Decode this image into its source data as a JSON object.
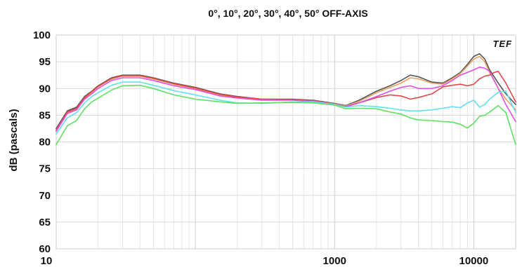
{
  "chart_data": {
    "type": "line",
    "title": "0°, 10°, 20°, 30°, 40°, 50° OFF-AXIS",
    "xlabel": "",
    "ylabel": "dB (pascals)",
    "xscale": "log",
    "xlim": [
      10,
      20000
    ],
    "ylim": [
      60,
      100
    ],
    "x_ticks": [
      10,
      1000,
      10000
    ],
    "x_tick_labels": [
      "10",
      "1000",
      "10000"
    ],
    "y_ticks": [
      100,
      95,
      90,
      85,
      80,
      75,
      70,
      65,
      60
    ],
    "y_tick_labels": [
      "100",
      "95",
      "90",
      "85",
      "80",
      "75",
      "70",
      "65",
      "60"
    ],
    "grid": true,
    "logo": "TEF",
    "series": [
      {
        "color": "#555555",
        "points": [
          [
            10,
            82.5
          ],
          [
            12,
            85.8
          ],
          [
            14,
            86.5
          ],
          [
            16,
            88.5
          ],
          [
            18,
            89.5
          ],
          [
            20,
            90.5
          ],
          [
            25,
            92.0
          ],
          [
            30,
            92.5
          ],
          [
            40,
            92.5
          ],
          [
            50,
            92.0
          ],
          [
            70,
            91.0
          ],
          [
            100,
            90.2
          ],
          [
            150,
            89.0
          ],
          [
            200,
            88.5
          ],
          [
            300,
            88.0
          ],
          [
            500,
            88.0
          ],
          [
            700,
            87.8
          ],
          [
            1000,
            87.2
          ],
          [
            1200,
            86.8
          ],
          [
            1500,
            87.8
          ],
          [
            2000,
            89.5
          ],
          [
            2500,
            90.5
          ],
          [
            3000,
            91.5
          ],
          [
            3500,
            92.5
          ],
          [
            4000,
            92.2
          ],
          [
            5000,
            91.2
          ],
          [
            6000,
            91.0
          ],
          [
            7000,
            92.0
          ],
          [
            8000,
            93.0
          ],
          [
            9000,
            94.5
          ],
          [
            10000,
            96.0
          ],
          [
            11000,
            96.5
          ],
          [
            12000,
            95.5
          ],
          [
            13000,
            93.5
          ],
          [
            15000,
            91.0
          ],
          [
            17000,
            89.0
          ],
          [
            20000,
            87.0
          ]
        ]
      },
      {
        "color": "#e8a060",
        "points": [
          [
            10,
            82.0
          ],
          [
            12,
            85.5
          ],
          [
            14,
            86.2
          ],
          [
            16,
            88.2
          ],
          [
            18,
            89.3
          ],
          [
            20,
            90.3
          ],
          [
            25,
            91.8
          ],
          [
            30,
            92.3
          ],
          [
            40,
            92.3
          ],
          [
            50,
            91.8
          ],
          [
            70,
            90.8
          ],
          [
            100,
            90.0
          ],
          [
            150,
            88.8
          ],
          [
            200,
            88.3
          ],
          [
            300,
            87.9
          ],
          [
            500,
            87.9
          ],
          [
            700,
            87.7
          ],
          [
            1000,
            87.1
          ],
          [
            1200,
            86.7
          ],
          [
            1500,
            87.6
          ],
          [
            2000,
            89.2
          ],
          [
            2500,
            90.2
          ],
          [
            3000,
            91.0
          ],
          [
            3500,
            92.0
          ],
          [
            4000,
            91.8
          ],
          [
            5000,
            91.0
          ],
          [
            6000,
            90.8
          ],
          [
            7000,
            91.8
          ],
          [
            8000,
            92.8
          ],
          [
            9000,
            94.2
          ],
          [
            10000,
            95.5
          ],
          [
            11000,
            96.0
          ],
          [
            12000,
            95.0
          ],
          [
            13000,
            93.0
          ],
          [
            15000,
            90.0
          ],
          [
            17000,
            88.0
          ],
          [
            20000,
            86.0
          ]
        ]
      },
      {
        "color": "#e04848",
        "points": [
          [
            10,
            82.2
          ],
          [
            12,
            85.6
          ],
          [
            14,
            86.3
          ],
          [
            16,
            88.3
          ],
          [
            18,
            89.4
          ],
          [
            20,
            90.4
          ],
          [
            25,
            91.9
          ],
          [
            30,
            92.4
          ],
          [
            40,
            92.4
          ],
          [
            50,
            91.9
          ],
          [
            70,
            90.9
          ],
          [
            100,
            90.1
          ],
          [
            150,
            88.9
          ],
          [
            200,
            88.4
          ],
          [
            300,
            88.0
          ],
          [
            500,
            87.9
          ],
          [
            700,
            87.7
          ],
          [
            1000,
            87.0
          ],
          [
            1200,
            86.6
          ],
          [
            1500,
            87.3
          ],
          [
            2000,
            88.3
          ],
          [
            2500,
            88.8
          ],
          [
            3000,
            88.6
          ],
          [
            3500,
            88.0
          ],
          [
            4000,
            88.3
          ],
          [
            5000,
            89.0
          ],
          [
            6000,
            90.3
          ],
          [
            7000,
            90.6
          ],
          [
            8000,
            90.8
          ],
          [
            9000,
            90.5
          ],
          [
            10000,
            90.8
          ],
          [
            11000,
            91.8
          ],
          [
            12000,
            92.3
          ],
          [
            13000,
            92.5
          ],
          [
            14000,
            93.0
          ],
          [
            15000,
            93.2
          ],
          [
            17000,
            91.0
          ],
          [
            20000,
            87.5
          ]
        ]
      },
      {
        "color": "#e050e0",
        "points": [
          [
            10,
            82.0
          ],
          [
            12,
            85.3
          ],
          [
            14,
            86.0
          ],
          [
            16,
            88.0
          ],
          [
            18,
            89.0
          ],
          [
            20,
            90.0
          ],
          [
            25,
            91.5
          ],
          [
            30,
            92.0
          ],
          [
            40,
            92.0
          ],
          [
            50,
            91.5
          ],
          [
            70,
            90.5
          ],
          [
            100,
            89.8
          ],
          [
            150,
            88.6
          ],
          [
            200,
            88.2
          ],
          [
            300,
            87.8
          ],
          [
            500,
            87.8
          ],
          [
            700,
            87.6
          ],
          [
            1000,
            87.0
          ],
          [
            1200,
            86.6
          ],
          [
            1500,
            87.3
          ],
          [
            2000,
            88.5
          ],
          [
            2500,
            89.5
          ],
          [
            3000,
            90.2
          ],
          [
            3500,
            90.5
          ],
          [
            4000,
            90.0
          ],
          [
            5000,
            90.0
          ],
          [
            6000,
            90.5
          ],
          [
            7000,
            91.5
          ],
          [
            8000,
            92.5
          ],
          [
            9000,
            93.0
          ],
          [
            10000,
            93.5
          ],
          [
            11000,
            94.0
          ],
          [
            12000,
            93.8
          ],
          [
            13000,
            93.2
          ],
          [
            15000,
            90.0
          ],
          [
            17000,
            87.0
          ],
          [
            20000,
            83.8
          ]
        ]
      },
      {
        "color": "#60e0f0",
        "points": [
          [
            10,
            81.5
          ],
          [
            12,
            84.5
          ],
          [
            14,
            85.5
          ],
          [
            16,
            87.3
          ],
          [
            18,
            88.5
          ],
          [
            20,
            89.2
          ],
          [
            25,
            90.6
          ],
          [
            30,
            91.2
          ],
          [
            40,
            91.2
          ],
          [
            50,
            90.6
          ],
          [
            70,
            89.6
          ],
          [
            100,
            88.8
          ],
          [
            150,
            87.8
          ],
          [
            200,
            87.3
          ],
          [
            300,
            87.2
          ],
          [
            500,
            87.5
          ],
          [
            700,
            87.5
          ],
          [
            1000,
            87.0
          ],
          [
            1200,
            86.5
          ],
          [
            1500,
            86.8
          ],
          [
            2000,
            86.6
          ],
          [
            2500,
            86.3
          ],
          [
            3000,
            86.0
          ],
          [
            3500,
            85.8
          ],
          [
            4000,
            85.8
          ],
          [
            5000,
            86.0
          ],
          [
            6000,
            86.3
          ],
          [
            7000,
            86.6
          ],
          [
            8000,
            86.4
          ],
          [
            9000,
            87.3
          ],
          [
            10000,
            87.8
          ],
          [
            11000,
            86.5
          ],
          [
            12000,
            87.0
          ],
          [
            13000,
            88.0
          ],
          [
            15000,
            89.3
          ],
          [
            17000,
            89.5
          ],
          [
            20000,
            85.5
          ]
        ]
      },
      {
        "color": "#60e060",
        "points": [
          [
            10,
            79.5
          ],
          [
            12,
            83.0
          ],
          [
            14,
            84.0
          ],
          [
            16,
            86.2
          ],
          [
            18,
            87.5
          ],
          [
            20,
            88.2
          ],
          [
            25,
            89.7
          ],
          [
            30,
            90.5
          ],
          [
            40,
            90.6
          ],
          [
            50,
            90.0
          ],
          [
            70,
            88.8
          ],
          [
            100,
            88.0
          ],
          [
            150,
            87.5
          ],
          [
            200,
            87.2
          ],
          [
            300,
            87.3
          ],
          [
            500,
            87.4
          ],
          [
            700,
            87.3
          ],
          [
            1000,
            86.9
          ],
          [
            1200,
            86.2
          ],
          [
            1500,
            86.3
          ],
          [
            2000,
            86.2
          ],
          [
            2500,
            85.6
          ],
          [
            3000,
            85.2
          ],
          [
            3500,
            84.5
          ],
          [
            4000,
            84.1
          ],
          [
            5000,
            84.0
          ],
          [
            6000,
            83.8
          ],
          [
            7000,
            83.7
          ],
          [
            8000,
            83.3
          ],
          [
            9000,
            82.6
          ],
          [
            10000,
            83.5
          ],
          [
            11000,
            84.8
          ],
          [
            12000,
            85.0
          ],
          [
            13000,
            85.6
          ],
          [
            15000,
            86.8
          ],
          [
            17000,
            85.5
          ],
          [
            20000,
            79.5
          ]
        ]
      }
    ]
  }
}
